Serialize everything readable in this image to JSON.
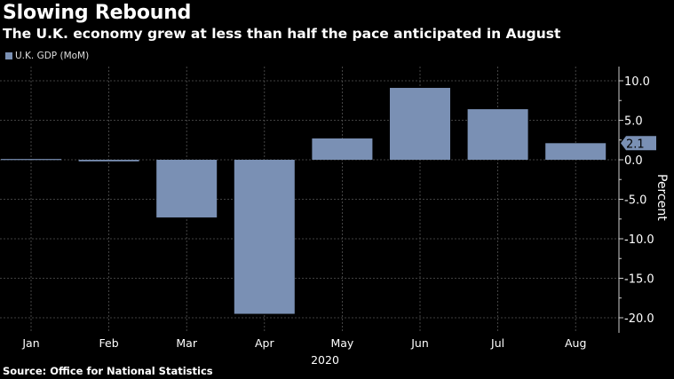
{
  "title": "Slowing Rebound",
  "subtitle": "The U.K. economy grew at less than half the pace anticipated in August",
  "source": "Source: Office for National Statistics",
  "colors": {
    "bar": "#7a90b4",
    "background": "#000000",
    "grid": "#555555",
    "text": "#ffffff"
  },
  "chart_data": {
    "type": "bar",
    "categories": [
      "Jan",
      "Feb",
      "Mar",
      "Apr",
      "May",
      "Jun",
      "Jul",
      "Aug"
    ],
    "series": [
      {
        "name": "U.K. GDP (MoM)",
        "values": [
          0.1,
          -0.2,
          -7.3,
          -19.5,
          2.7,
          9.1,
          6.4,
          2.1
        ]
      }
    ],
    "xlabel": "2020",
    "ylabel": "Percent",
    "ylim": [
      -21,
      11
    ],
    "yticks": [
      "10.0",
      "5.0",
      "0.0",
      "-5.0",
      "-10.0",
      "-15.0",
      "-20.0"
    ],
    "ytick_values": [
      10,
      5,
      0,
      -5,
      -10,
      -15,
      -20
    ],
    "y_axis_position": "right",
    "last_value_label": "2.1",
    "grid": true,
    "legend_position": "top-left"
  }
}
